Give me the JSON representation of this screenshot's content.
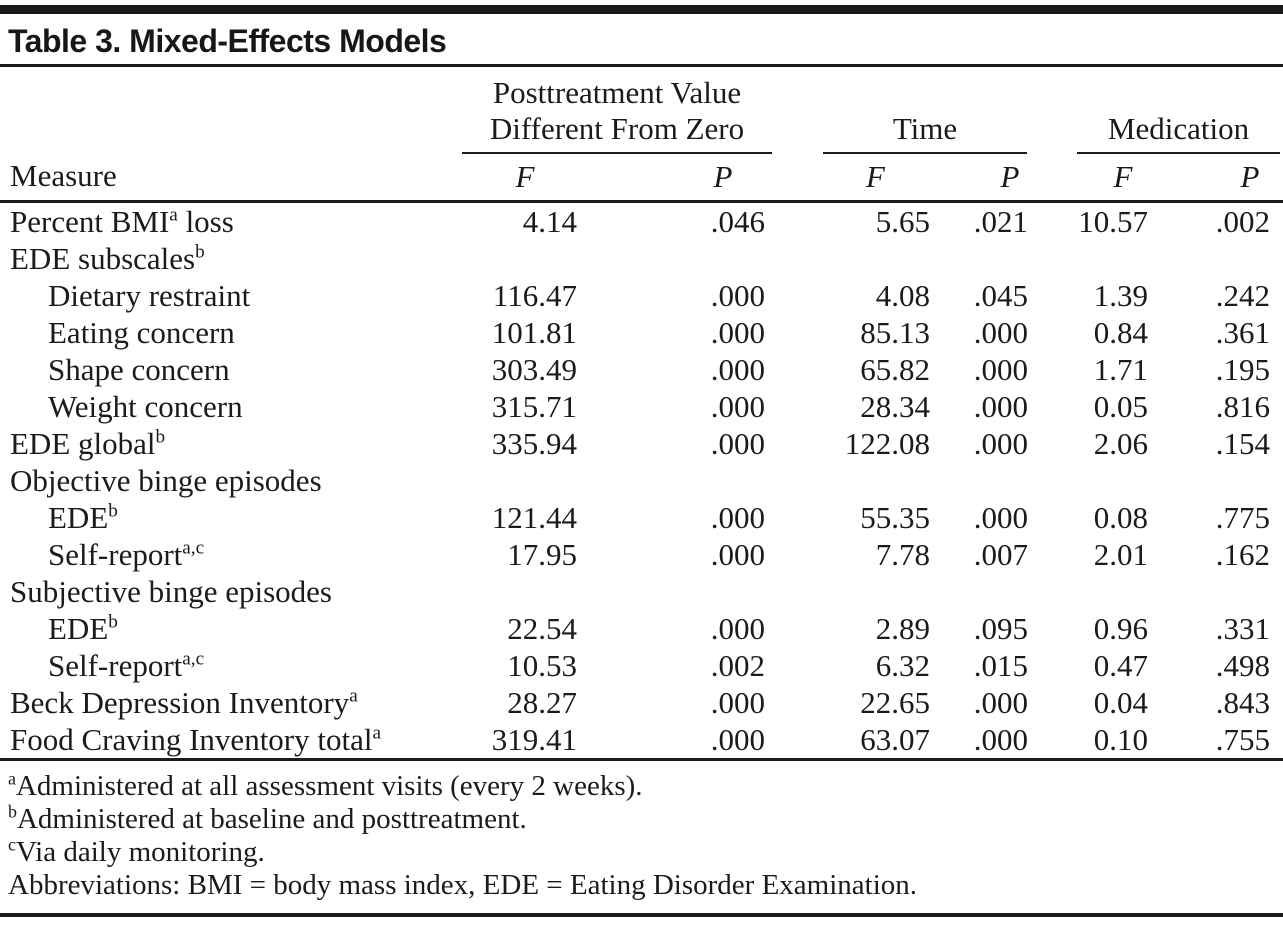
{
  "title": "Table 3. Mixed-Effects Models",
  "table": {
    "measure_header": "Measure",
    "groups": [
      {
        "label": "Posttreatment Value Different From Zero"
      },
      {
        "label": "Time"
      },
      {
        "label": "Medication"
      }
    ],
    "f_label": "F",
    "p_label": "P",
    "rows": [
      {
        "measure": {
          "pre": "Percent BMI",
          "sup": "a",
          "post": " loss"
        },
        "values": [
          "4.14",
          ".046",
          "5.65",
          ".021",
          "10.57",
          ".002"
        ]
      },
      {
        "measure": {
          "pre": "EDE subscales",
          "sup": "b",
          "post": ""
        },
        "values": [
          "",
          "",
          "",
          "",
          "",
          ""
        ]
      },
      {
        "measure": {
          "pre": "Dietary restraint",
          "sup": "",
          "post": ""
        },
        "values": [
          "116.47",
          ".000",
          "4.08",
          ".045",
          "1.39",
          ".242"
        ]
      },
      {
        "measure": {
          "pre": "Eating concern",
          "sup": "",
          "post": ""
        },
        "values": [
          "101.81",
          ".000",
          "85.13",
          ".000",
          "0.84",
          ".361"
        ]
      },
      {
        "measure": {
          "pre": "Shape concern",
          "sup": "",
          "post": ""
        },
        "values": [
          "303.49",
          ".000",
          "65.82",
          ".000",
          "1.71",
          ".195"
        ]
      },
      {
        "measure": {
          "pre": "Weight concern",
          "sup": "",
          "post": ""
        },
        "values": [
          "315.71",
          ".000",
          "28.34",
          ".000",
          "0.05",
          ".816"
        ]
      },
      {
        "measure": {
          "pre": "EDE global",
          "sup": "b",
          "post": ""
        },
        "values": [
          "335.94",
          ".000",
          "122.08",
          ".000",
          "2.06",
          ".154"
        ]
      },
      {
        "measure": {
          "pre": "Objective binge episodes",
          "sup": "",
          "post": ""
        },
        "values": [
          "",
          "",
          "",
          "",
          "",
          ""
        ]
      },
      {
        "measure": {
          "pre": "EDE",
          "sup": "b",
          "post": ""
        },
        "values": [
          "121.44",
          ".000",
          "55.35",
          ".000",
          "0.08",
          ".775"
        ]
      },
      {
        "measure": {
          "pre": "Self-report",
          "sup": "a,c",
          "post": ""
        },
        "values": [
          "17.95",
          ".000",
          "7.78",
          ".007",
          "2.01",
          ".162"
        ]
      },
      {
        "measure": {
          "pre": "Subjective binge episodes",
          "sup": "",
          "post": ""
        },
        "values": [
          "",
          "",
          "",
          "",
          "",
          ""
        ]
      },
      {
        "measure": {
          "pre": "EDE",
          "sup": "b",
          "post": ""
        },
        "values": [
          "22.54",
          ".000",
          "2.89",
          ".095",
          "0.96",
          ".331"
        ]
      },
      {
        "measure": {
          "pre": "Self-report",
          "sup": "a,c",
          "post": ""
        },
        "values": [
          "10.53",
          ".002",
          "6.32",
          ".015",
          "0.47",
          ".498"
        ]
      },
      {
        "measure": {
          "pre": "Beck Depression Inventory",
          "sup": "a",
          "post": ""
        },
        "values": [
          "28.27",
          ".000",
          "22.65",
          ".000",
          "0.04",
          ".843"
        ]
      },
      {
        "measure": {
          "pre": "Food Craving Inventory total",
          "sup": "a",
          "post": ""
        },
        "values": [
          "319.41",
          ".000",
          "63.07",
          ".000",
          "0.10",
          ".755"
        ]
      }
    ]
  },
  "footnotes": [
    {
      "sup": "a",
      "text": "Administered at all assessment visits (every 2 weeks)."
    },
    {
      "sup": "b",
      "text": "Administered at baseline and posttreatment."
    },
    {
      "sup": "c",
      "text": "Via daily monitoring."
    },
    {
      "sup": "",
      "text": "Abbreviations: BMI = body mass index, EDE = Eating Disorder Examination."
    }
  ]
}
